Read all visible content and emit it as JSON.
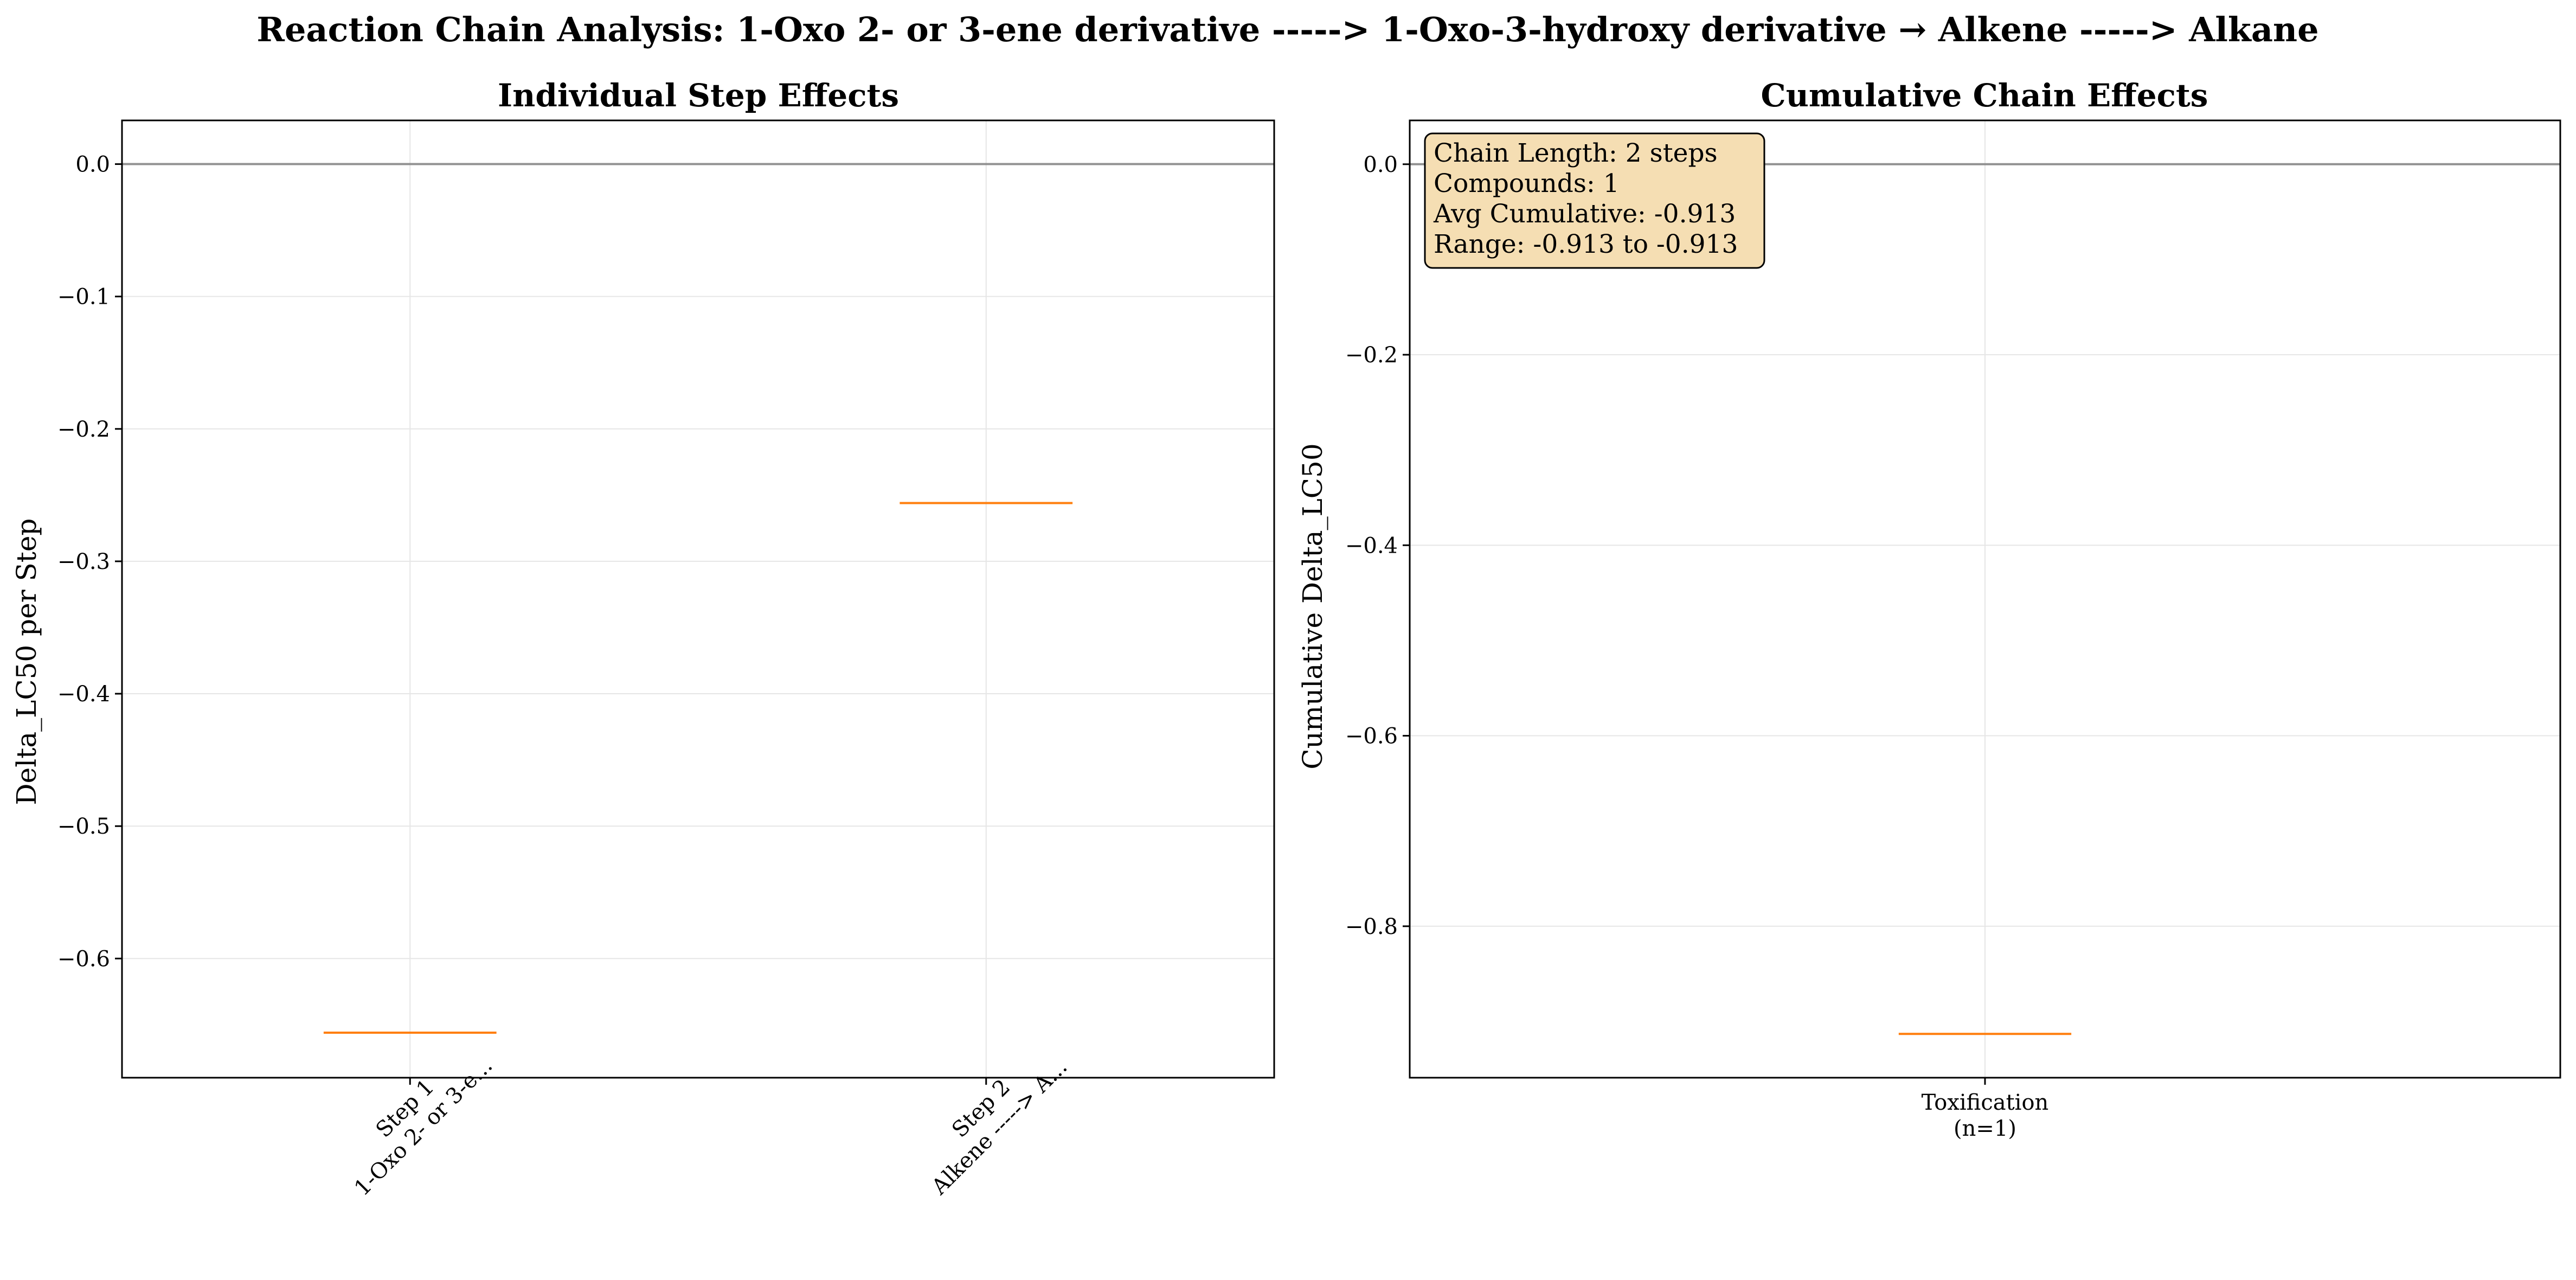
{
  "figure": {
    "suptitle": "Reaction Chain Analysis: 1-Oxo 2- or 3-ene derivative -----> 1-Oxo-3-hydroxy derivative → Alkene -----> Alkane"
  },
  "chart_data": [
    {
      "type": "box",
      "title": "Individual Step Effects",
      "xlabel": "",
      "ylabel": "Delta_LC50 per Step",
      "categories": [
        [
          "Step 1",
          "1-Oxo 2- or 3-e..."
        ],
        [
          "Step 2",
          "Alkene -----> A..."
        ]
      ],
      "values": [
        -0.656,
        -0.256
      ],
      "ylim": [
        -0.69,
        0.033
      ],
      "yticks": [
        0.0,
        -0.1,
        -0.2,
        -0.3,
        -0.4,
        -0.5,
        -0.6
      ],
      "ytick_labels": [
        "0.0",
        "−0.1",
        "−0.2",
        "−0.3",
        "−0.4",
        "−0.5",
        "−0.6"
      ],
      "reference_line": 0.0,
      "grid": true,
      "xtick_rotation": "45 degrees",
      "median_color": "#ff7f0e",
      "reference_line_color": "#808080"
    },
    {
      "type": "box",
      "title": "Cumulative Chain Effects",
      "xlabel": "",
      "ylabel": "Cumulative Delta_LC50",
      "categories": [
        [
          "Toxification",
          "(n=1)"
        ]
      ],
      "values": [
        -0.913
      ],
      "ylim": [
        -0.959,
        0.046
      ],
      "yticks": [
        0.0,
        -0.2,
        -0.4,
        -0.6,
        -0.8
      ],
      "ytick_labels": [
        "0.0",
        "−0.2",
        "−0.4",
        "−0.6",
        "−0.8"
      ],
      "reference_line": 0.0,
      "grid": true,
      "median_color": "#ff7f0e",
      "reference_line_color": "#808080",
      "annotation": {
        "lines": [
          "Chain Length: 2 steps",
          "Compounds: 1",
          "Avg Cumulative: -0.913",
          "Range: -0.913 to -0.913"
        ],
        "placement": "top-left",
        "background": "#f5deb3"
      }
    }
  ]
}
